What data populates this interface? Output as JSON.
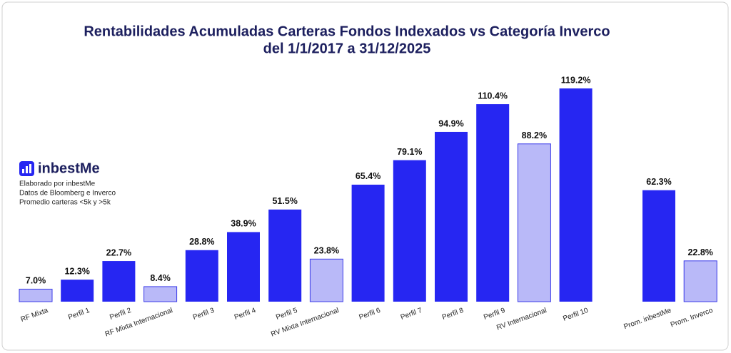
{
  "chart_data": {
    "type": "bar",
    "title": [
      "Rentabilidades Acumuladas Carteras Fondos Indexados vs Categoría Inverco",
      "del 1/1/2017 a 31/12/2025"
    ],
    "logo": "inbestMe",
    "notes": [
      "Elaborado por inbestMe",
      "Datos de Bloomberg e Inverco",
      "Promedio carteras <5k y >5k"
    ],
    "categories": [
      "RF Mixta",
      "Perfil 1",
      "Perfil 2",
      "RF Mixta Internacional",
      "Perfil 3",
      "Perfil 4",
      "Perfil 5",
      "RV Mixta Internacional",
      "Perfil 6",
      "Perfil 7",
      "Perfil 8",
      "Perfil 9",
      "RV Internacional",
      "Perfil 10",
      null,
      "Prom. inbestMe",
      "Prom. Inverco"
    ],
    "values": [
      7.0,
      12.3,
      22.7,
      8.4,
      28.8,
      38.9,
      51.5,
      23.8,
      65.4,
      79.1,
      94.9,
      110.4,
      88.2,
      119.2,
      null,
      62.3,
      22.8
    ],
    "value_labels": [
      "7.0%",
      "12.3%",
      "22.7%",
      "8.4%",
      "28.8%",
      "38.9%",
      "51.5%",
      "23.8%",
      "65.4%",
      "79.1%",
      "94.9%",
      "110.4%",
      "88.2%",
      "119.2%",
      null,
      "62.3%",
      "22.8%"
    ],
    "colors": [
      "#b9b9f8",
      "#2626f2",
      "#2626f2",
      "#b9b9f8",
      "#2626f2",
      "#2626f2",
      "#2626f2",
      "#b9b9f8",
      "#2626f2",
      "#2626f2",
      "#2626f2",
      "#2626f2",
      "#b9b9f8",
      "#2626f2",
      null,
      "#2626f2",
      "#b9b9f8"
    ]
  }
}
